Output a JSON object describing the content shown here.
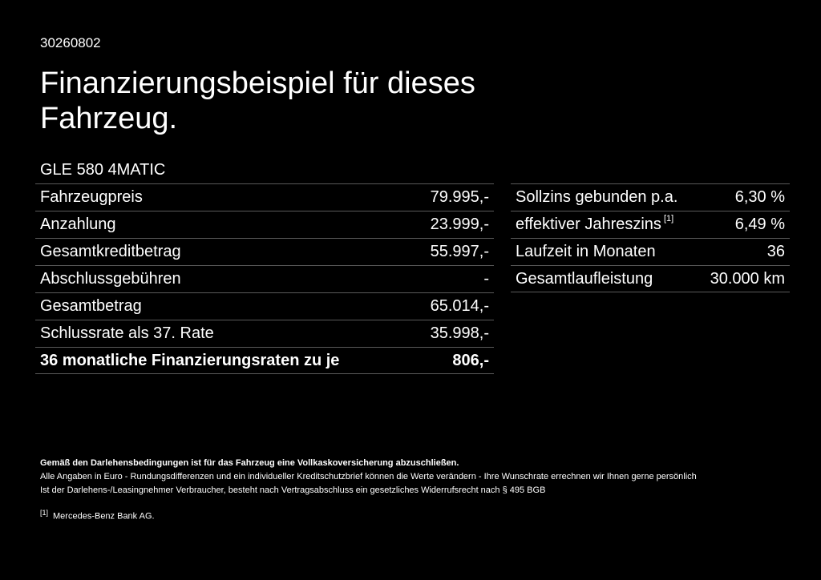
{
  "header": {
    "doc_id": "30260802",
    "title": "Finanzierungsbeispiel für dieses Fahrzeug.",
    "model": "GLE 580 4MATIC"
  },
  "left_table": {
    "rows": [
      {
        "label": "Fahrzeugpreis",
        "value": "79.995,-"
      },
      {
        "label": "Anzahlung",
        "value": "23.999,-"
      },
      {
        "label": "Gesamtkreditbetrag",
        "value": "55.997,-"
      },
      {
        "label": "Abschlussgebühren",
        "value": "-"
      },
      {
        "label": "Gesamtbetrag",
        "value": "65.014,-"
      },
      {
        "label": "Schlussrate als 37. Rate",
        "value": "35.998,-"
      },
      {
        "label": "36 monatliche Finanzierungsraten zu je",
        "value": "806,-"
      }
    ]
  },
  "right_table": {
    "rows": [
      {
        "label": "Sollzins gebunden p.a.",
        "value": "6,30 %"
      },
      {
        "label": "effektiver Jahreszins",
        "ref": "[1]",
        "value": "6,49 %"
      },
      {
        "label": "Laufzeit in Monaten",
        "value": "36"
      },
      {
        "label": "Gesamtlaufleistung",
        "value": "30.000 km"
      }
    ]
  },
  "footer": {
    "note_bold": "Gemäß den Darlehensbedingungen ist für das Fahrzeug eine Vollkaskoversicherung abzuschließen.",
    "note_1": "Alle Angaben in Euro - Rundungsdifferenzen und ein individueller Kreditschutzbrief können die Werte verändern - Ihre Wunschrate errechnen wir Ihnen gerne persönlich",
    "note_2": "Ist der Darlehens-/Leasingnehmer Verbraucher, besteht nach Vertragsabschluss ein gesetzliches Widerrufsrecht nach § 495 BGB",
    "footnote_ref": "[1]",
    "footnote_text": "Mercedes-Benz Bank AG."
  }
}
